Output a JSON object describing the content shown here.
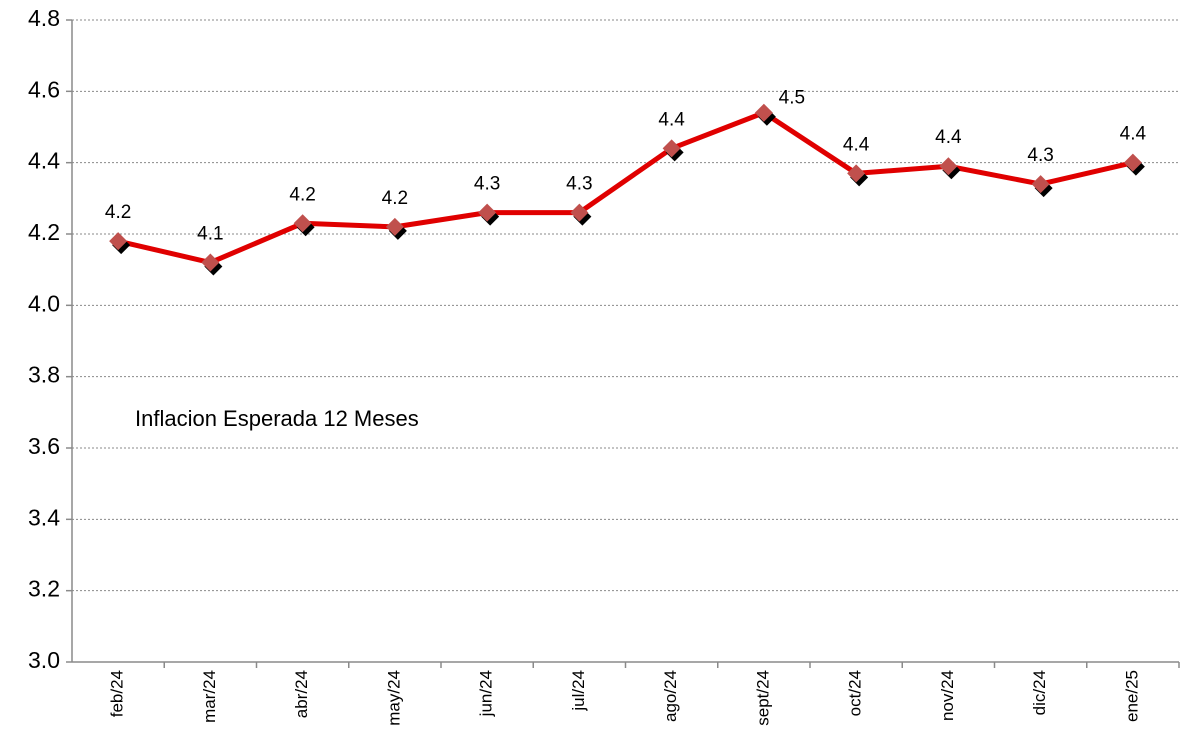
{
  "chart_data": {
    "type": "line",
    "categories": [
      "feb/24",
      "mar/24",
      "abr/24",
      "may/24",
      "jun/24",
      "jul/24",
      "ago/24",
      "sept/24",
      "oct/24",
      "nov/24",
      "dic/24",
      "ene/25"
    ],
    "series": [
      {
        "name": "Inflacion Esperada 12 Meses",
        "color": "#e00000",
        "marker_color": "#c0504d",
        "values": [
          4.18,
          4.12,
          4.23,
          4.22,
          4.26,
          4.26,
          4.44,
          4.54,
          4.37,
          4.39,
          4.34,
          4.4
        ],
        "value_labels": [
          "4.2",
          "4.1",
          "4.2",
          "4.2",
          "4.3",
          "4.3",
          "4.4",
          "4.5",
          "4.4",
          "4.4",
          "4.3",
          "4.4"
        ]
      }
    ],
    "ylim": [
      3.0,
      4.8
    ],
    "yticks": [
      {
        "value": 3.0,
        "label": "3.0"
      },
      {
        "value": 3.2,
        "label": "3.2"
      },
      {
        "value": 3.4,
        "label": "3.4"
      },
      {
        "value": 3.6,
        "label": "3.6"
      },
      {
        "value": 3.8,
        "label": "3.8"
      },
      {
        "value": 4.0,
        "label": "4.0"
      },
      {
        "value": 4.2,
        "label": "4.2"
      },
      {
        "value": 4.4,
        "label": "4.4"
      },
      {
        "value": 4.6,
        "label": "4.6"
      },
      {
        "value": 4.8,
        "label": "4.8"
      }
    ],
    "grid": true
  }
}
